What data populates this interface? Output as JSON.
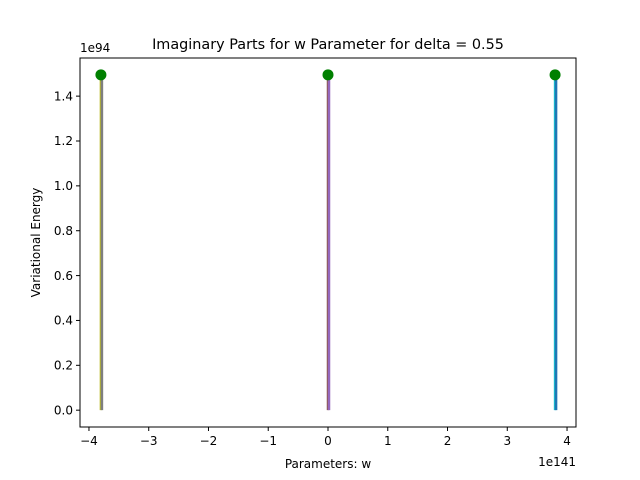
{
  "chart_data": {
    "type": "line",
    "title": "Imaginary Parts for w Parameter for delta = 0.55",
    "xlabel": "Parameters: w",
    "ylabel": "Variational Energy",
    "x_offset_label": "1e141",
    "y_offset_label": "1e94",
    "xlim": [
      -4.15,
      4.15
    ],
    "ylim": [
      -0.075,
      1.57
    ],
    "x_ticks": [
      -4,
      -3,
      -2,
      -1,
      0,
      1,
      2,
      3,
      4
    ],
    "x_tick_labels": [
      "−4",
      "−3",
      "−2",
      "−1",
      "0",
      "1",
      "2",
      "3",
      "4"
    ],
    "y_ticks": [
      0.0,
      0.2,
      0.4,
      0.6,
      0.8,
      1.0,
      1.2,
      1.4
    ],
    "y_tick_labels": [
      "0.0",
      "0.2",
      "0.4",
      "0.6",
      "0.8",
      "1.0",
      "1.2",
      "1.4"
    ],
    "grid": false,
    "series": [
      {
        "x": [
          -3.8,
          -3.8
        ],
        "y": [
          0.0,
          1.495
        ],
        "color": "#bcbd22"
      },
      {
        "x": [
          -3.8,
          -3.8
        ],
        "y": [
          0.0,
          1.495
        ],
        "color": "#7f7f7f"
      },
      {
        "x": [
          0.0,
          0.0
        ],
        "y": [
          0.0,
          1.495
        ],
        "color": "#8c564b"
      },
      {
        "x": [
          0.0,
          0.0
        ],
        "y": [
          0.0,
          1.495
        ],
        "color": "#9467bd"
      },
      {
        "x": [
          3.8,
          3.8
        ],
        "y": [
          0.0,
          1.495
        ],
        "color": "#17becf"
      },
      {
        "x": [
          3.8,
          3.8
        ],
        "y": [
          0.0,
          1.495
        ],
        "color": "#1f77b4"
      }
    ],
    "markers": {
      "x": [
        -3.8,
        0.0,
        3.8
      ],
      "y": [
        1.495,
        1.495,
        1.495
      ],
      "color": "#008000"
    }
  }
}
